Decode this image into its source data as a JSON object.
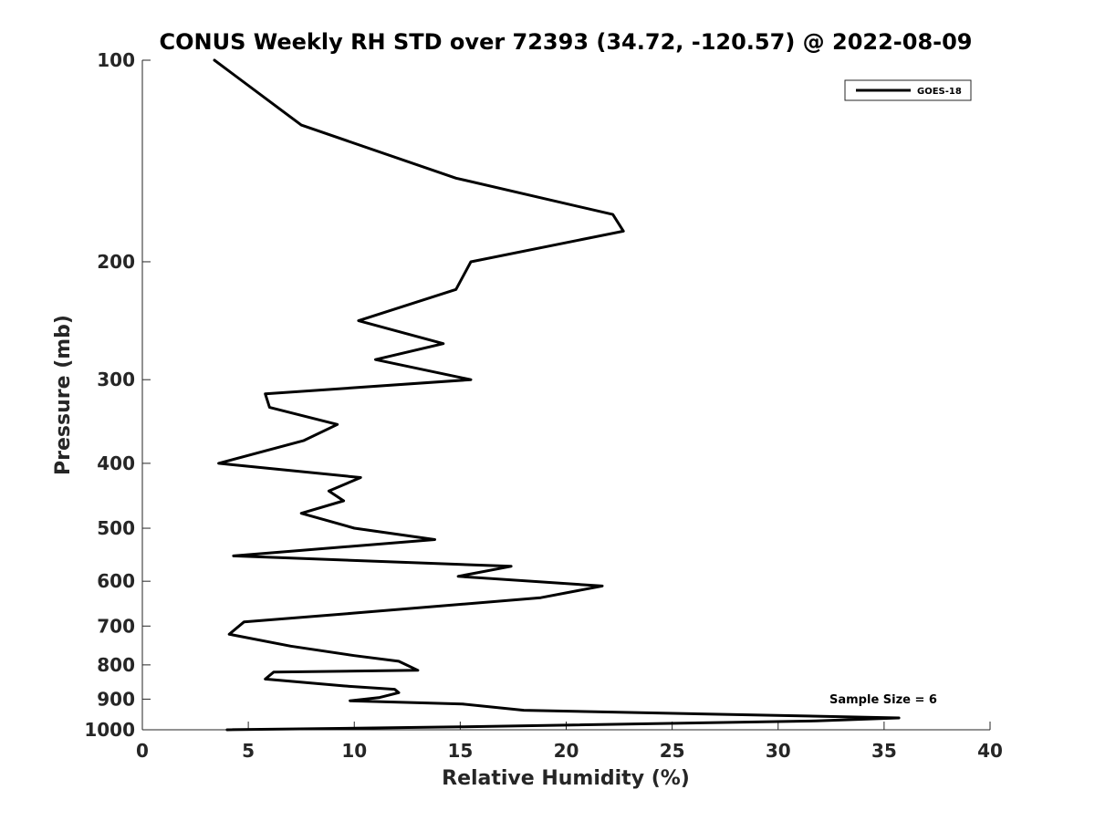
{
  "chart_data": {
    "type": "line",
    "title": "CONUS Weekly RH STD over 72393 (34.72, -120.57) @ 2022-08-09",
    "xlabel": "Relative Humidity (%)",
    "ylabel": "Pressure (mb)",
    "xlim": [
      0,
      40
    ],
    "ylim": [
      100,
      1000
    ],
    "y_scale": "log",
    "y_reversed": true,
    "x_ticks": [
      "0",
      "5",
      "10",
      "15",
      "20",
      "25",
      "30",
      "35",
      "40"
    ],
    "y_ticks": [
      "100",
      "200",
      "300",
      "400",
      "500",
      "600",
      "700",
      "800",
      "900",
      "1000"
    ],
    "grid": false,
    "legend_position": "top-right",
    "annotation": "Sample Size = 6",
    "series": [
      {
        "name": "GOES-18",
        "color": "#000000",
        "x": [
          3.4,
          7.5,
          14.8,
          22.2,
          22.7,
          15.5,
          14.8,
          10.2,
          14.2,
          11.0,
          15.5,
          5.8,
          6.0,
          9.2,
          7.6,
          3.6,
          10.3,
          8.8,
          9.5,
          7.5,
          10.0,
          13.8,
          4.3,
          17.4,
          14.9,
          21.7,
          18.8,
          9.9,
          4.8,
          4.1,
          7.0,
          10.0,
          12.1,
          13.0,
          6.2,
          5.8,
          9.5,
          11.9,
          12.1,
          11.2,
          9.8,
          15.1,
          18.0,
          35.7,
          31.8,
          15.0,
          4.0
        ],
        "y": [
          100,
          125,
          150,
          170,
          180,
          200,
          220,
          245,
          265,
          280,
          300,
          315,
          330,
          350,
          370,
          400,
          420,
          440,
          455,
          475,
          500,
          520,
          550,
          570,
          590,
          610,
          635,
          670,
          690,
          720,
          750,
          775,
          790,
          815,
          820,
          840,
          860,
          870,
          880,
          895,
          905,
          915,
          935,
          960,
          970,
          990,
          1000
        ]
      }
    ]
  }
}
